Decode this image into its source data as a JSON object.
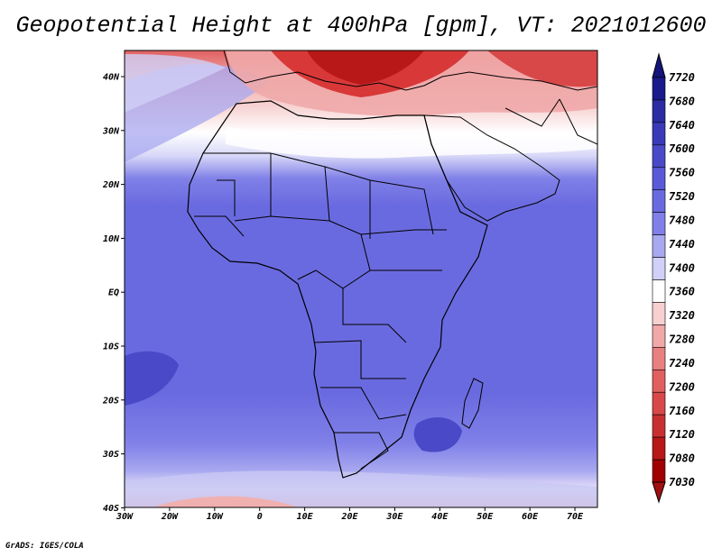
{
  "title": "Geopotential Height at 400hPa [gpm], VT: 2021012600",
  "footer": "GrADS: IGES/COLA",
  "map": {
    "lon_labels": [
      "30W",
      "20W",
      "10W",
      "0",
      "10E",
      "20E",
      "30E",
      "40E",
      "50E",
      "60E",
      "70E"
    ],
    "lat_labels": [
      "40N",
      "30N",
      "20N",
      "10N",
      "EQ",
      "10S",
      "20S",
      "30S",
      "40S"
    ]
  },
  "colorbar": {
    "levels": [
      "7720",
      "7680",
      "7640",
      "7600",
      "7560",
      "7520",
      "7480",
      "7440",
      "7400",
      "7360",
      "7320",
      "7280",
      "7240",
      "7200",
      "7160",
      "7120",
      "7080",
      "7030"
    ],
    "colors": [
      "#1a1a8c",
      "#2b2ba3",
      "#3a3ab8",
      "#4a4ac8",
      "#5a5ad8",
      "#6a6ae0",
      "#8080e8",
      "#a8a8f0",
      "#d0d0f8",
      "#ffffff",
      "#f8d0d0",
      "#f0a8a8",
      "#e88080",
      "#e06060",
      "#d84848",
      "#c83030",
      "#b81818",
      "#a00000"
    ],
    "top_color": "#14147a",
    "bottom_color": "#a01010"
  }
}
